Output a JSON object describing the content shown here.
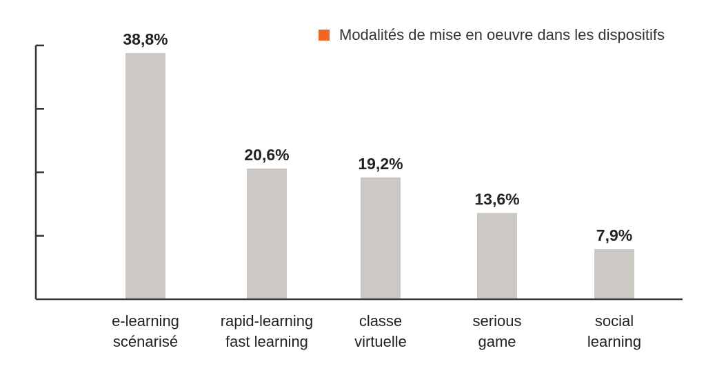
{
  "legend": {
    "label": "Modalités de mise en oeuvre dans les dispositifs",
    "swatch_color": "#F26522"
  },
  "chart_data": {
    "type": "bar",
    "categories": [
      [
        "e-learning",
        "scénarisé"
      ],
      [
        "rapid-learning",
        "fast learning"
      ],
      [
        "classe",
        "virtuelle"
      ],
      [
        "serious",
        "game"
      ],
      [
        "social",
        "learning"
      ]
    ],
    "values": [
      38.8,
      20.6,
      19.2,
      13.6,
      7.9
    ],
    "value_labels": [
      "38,8%",
      "20,6%",
      "19,2%",
      "13,6%",
      "7,9%"
    ],
    "ylim": [
      0,
      40
    ],
    "y_ticks": [
      10,
      20,
      30,
      40
    ],
    "y_tick_labels_shown": false,
    "grid": false,
    "legend_position": "top-right",
    "colors": {
      "bar": "#CCC8C3",
      "axis": "#333333",
      "text": "#222222"
    }
  }
}
